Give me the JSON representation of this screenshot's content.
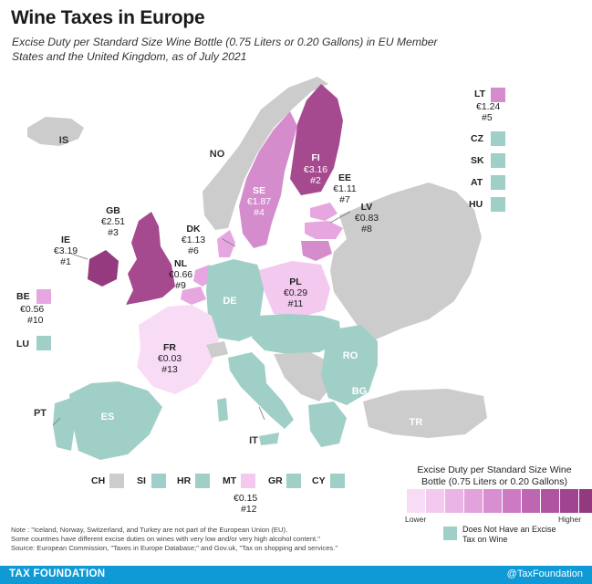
{
  "title": "Wine Taxes in Europe",
  "subtitle": "Excise Duty per Standard Size Wine Bottle (0.75 Liters or 0.20 Gallons) in EU Member States and the United Kingdom, as of July 2021",
  "colors": {
    "no_tax": "#9fcfc6",
    "non_eu": "#cccccc",
    "low": "#f3c9ef",
    "mid_low": "#e6a7e0",
    "mid": "#d58ccd",
    "mid_high": "#c66cb6",
    "high": "#a64a90",
    "highest": "#963a7f",
    "footer": "#0f9ad6"
  },
  "countries": {
    "IE": {
      "code": "IE",
      "value": "€3.19",
      "rank": "#1"
    },
    "FI": {
      "code": "FI",
      "value": "€3.16",
      "rank": "#2"
    },
    "GB": {
      "code": "GB",
      "value": "€2.51",
      "rank": "#3"
    },
    "SE": {
      "code": "SE",
      "value": "€1.87",
      "rank": "#4"
    },
    "LT": {
      "code": "LT",
      "value": "€1.24",
      "rank": "#5"
    },
    "DK": {
      "code": "DK",
      "value": "€1.13",
      "rank": "#6"
    },
    "EE": {
      "code": "EE",
      "value": "€1.11",
      "rank": "#7"
    },
    "LV": {
      "code": "LV",
      "value": "€0.83",
      "rank": "#8"
    },
    "NL": {
      "code": "NL",
      "value": "€0.66",
      "rank": "#9"
    },
    "BE": {
      "code": "BE",
      "value": "€0.56",
      "rank": "#10"
    },
    "PL": {
      "code": "PL",
      "value": "€0.29",
      "rank": "#11"
    },
    "MT": {
      "code": "MT",
      "value": "€0.15",
      "rank": "#12"
    },
    "FR": {
      "code": "FR",
      "value": "€0.03",
      "rank": "#13"
    }
  },
  "labels": {
    "IS": "IS",
    "NO": "NO",
    "CZ": "CZ",
    "SK": "SK",
    "AT": "AT",
    "HU": "HU",
    "LU": "LU",
    "DE": "DE",
    "RO": "RO",
    "BG": "BG",
    "TR": "TR",
    "PT": "PT",
    "ES": "ES",
    "IT": "IT",
    "CH": "CH",
    "SI": "SI",
    "HR": "HR",
    "GR": "GR",
    "CY": "CY"
  },
  "notes": [
    "Note : \"Iceland, Norway, Switzerland, and Turkey are not part of the European Union (EU).",
    "Some countries have different excise duties on wines with very low and/or very high alcohol content.\"",
    "Source: European Commission, \"Taxes in Europe Database;\" and Gov.uk, \"Tax on shopping and services.\""
  ],
  "legend": {
    "title": "Excise Duty per Standard Size Wine Bottle (0.75 Liters or 0.20 Gallons)",
    "lower": "Lower",
    "higher": "Higher",
    "no_tax": "Does Not Have an Excise Tax on Wine",
    "scale": [
      "#f8dcf5",
      "#f3c9ef",
      "#eab5e6",
      "#e2a2dc",
      "#d88fd1",
      "#cc7bc3",
      "#bf66b2",
      "#b054a0",
      "#a04490",
      "#943880"
    ]
  },
  "footer": {
    "brand": "TAX FOUNDATION",
    "handle": "@TaxFoundation"
  }
}
